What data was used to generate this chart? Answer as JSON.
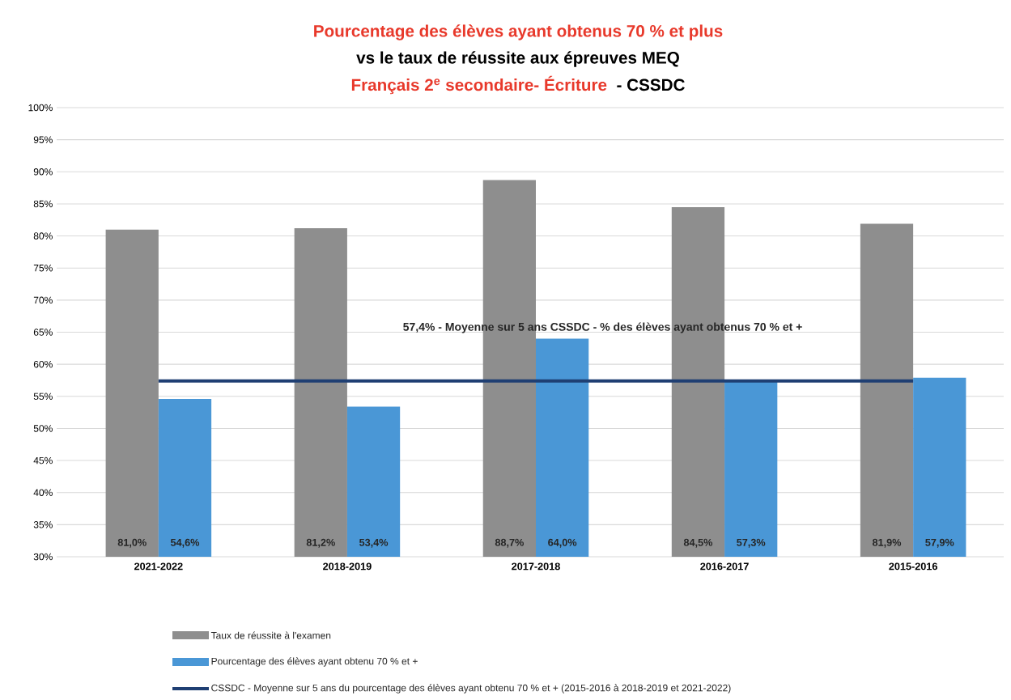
{
  "chart_data": {
    "type": "bar",
    "title": "Pourcentage des élèves ayant obtenus 70 % et plus",
    "subtitle": "vs le taux de réussite aux épreuves MEQ",
    "annotations": [
      "Français 2$^{e}$ secondaire- Écriture",
      "- CSSDC",
      "57,4% - Moyenne sur 5 ans CSSDC - % des élèves ayant obtenus 70 % et +"
    ],
    "categories": [
      "2021-2022",
      "2018-2019",
      "2017-2018",
      "2016-2017",
      "2015-2016"
    ],
    "series": [
      {
        "name": "Taux de réussite à l'examen",
        "color": "#8e8e8e",
        "values": [
          81.0,
          81.2,
          88.7,
          84.5,
          81.9
        ],
        "value_labels": [
          "81,0%",
          "81,2%",
          "88,7%",
          "84,5%",
          "81,9%"
        ]
      },
      {
        "name": "Pourcentage des élèves ayant obtenu 70 % et +",
        "color": "#4a97d6",
        "values": [
          54.6,
          53.4,
          64.0,
          57.3,
          57.9
        ],
        "value_labels": [
          "54,6%",
          "53,4%",
          "64,0%",
          "57,3%",
          "57,9%"
        ]
      },
      {
        "name": "CSSDC - Moyenne sur 5 ans du pourcentage des élèves ayant obtenu 70 % et + (2015-2016 à 2018-2019 et 2021-2022)",
        "type": "line",
        "color": "#1f3f73",
        "values": [
          57.4,
          57.4,
          57.4,
          57.4,
          57.4
        ]
      }
    ],
    "ylim": [
      30,
      100
    ],
    "yticks": [
      {
        "value": 30,
        "label": "30%"
      },
      {
        "value": 35,
        "label": "35%"
      },
      {
        "value": 40,
        "label": "40%"
      },
      {
        "value": 45,
        "label": "45%"
      },
      {
        "value": 50,
        "label": "50%"
      },
      {
        "value": 55,
        "label": "55%"
      },
      {
        "value": 60,
        "label": "60%"
      },
      {
        "value": 65,
        "label": "65%"
      },
      {
        "value": 70,
        "label": "70%"
      },
      {
        "value": 75,
        "label": "75%"
      },
      {
        "value": 80,
        "label": "80%"
      },
      {
        "value": 85,
        "label": "85%"
      },
      {
        "value": 90,
        "label": "90%"
      },
      {
        "value": 95,
        "label": "95%"
      },
      {
        "value": 100,
        "label": "100%"
      }
    ],
    "grid": "y",
    "legend": "bottom",
    "marker": "none",
    "line_style": "solid"
  }
}
